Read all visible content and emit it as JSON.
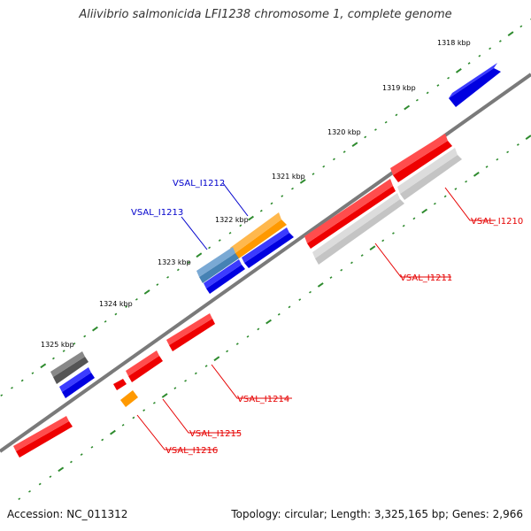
{
  "title": "Aliivibrio salmonicida LFI1238 chromosome 1, complete genome",
  "footer": {
    "accession": "Accession: NC_011312",
    "summary": "Topology: circular; Length: 3,325,165 bp; Genes: 2,966"
  },
  "ruler_labels": [
    "1318 kbp",
    "1319 kbp",
    "1320 kbp",
    "1321 kbp",
    "1322 kbp",
    "1323 kbp",
    "1324 kbp",
    "1325 kbp"
  ],
  "gene_labels": [
    {
      "text": "VSAL_I1210",
      "color": "#e60000"
    },
    {
      "text": "VSAL_I1211",
      "color": "#e60000"
    },
    {
      "text": "VSAL_I1212",
      "color": "#0000cc"
    },
    {
      "text": "VSAL_I1213",
      "color": "#0000cc"
    },
    {
      "text": "VSAL_I1214",
      "color": "#e60000"
    },
    {
      "text": "VSAL_I1215",
      "color": "#e60000"
    },
    {
      "text": "VSAL_I1216",
      "color": "#e60000"
    }
  ],
  "colors": {
    "backbone": "#7a7a7a",
    "ticks": "#2e8b2e",
    "red": "#ee0000",
    "blue": "#0000e0",
    "orange": "#ff9900",
    "steelblue": "#4682b4",
    "lightgray": "#c4c4c4",
    "darkgray": "#555555"
  }
}
